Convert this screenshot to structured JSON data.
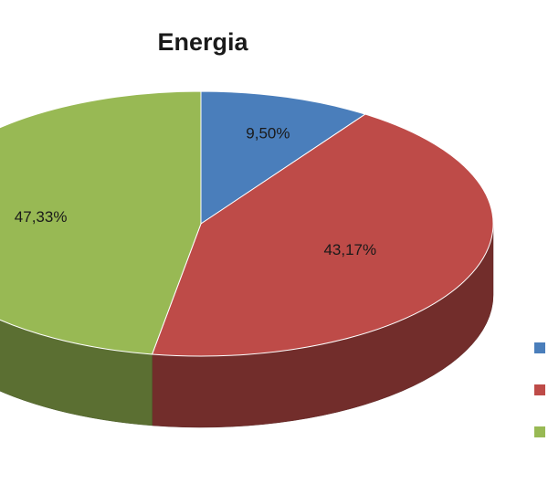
{
  "chart_data": {
    "type": "pie",
    "title": "Energia",
    "values": [
      9.5,
      43.17,
      47.33
    ],
    "value_labels": [
      "9,50%",
      "43,17%",
      "47,33%"
    ],
    "colors": [
      "#4a7ebb",
      "#be4b48",
      "#98b954"
    ],
    "legend": "right"
  }
}
